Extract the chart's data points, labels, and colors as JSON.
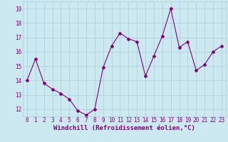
{
  "x": [
    0,
    1,
    2,
    3,
    4,
    5,
    6,
    7,
    8,
    9,
    10,
    11,
    12,
    13,
    14,
    15,
    16,
    17,
    18,
    19,
    20,
    21,
    22,
    23
  ],
  "y": [
    14.0,
    15.5,
    13.8,
    13.4,
    13.1,
    12.7,
    11.9,
    11.6,
    12.0,
    14.9,
    16.4,
    17.3,
    16.9,
    16.7,
    14.3,
    15.7,
    17.1,
    19.0,
    16.3,
    16.7,
    14.7,
    15.1,
    16.0,
    16.4
  ],
  "line_color": "#800080",
  "marker": "D",
  "marker_size": 2,
  "bg_color": "#cce8f0",
  "grid_color": "#aaccd8",
  "xlabel": "Windchill (Refroidissement éolien,°C)",
  "xlabel_color": "#800080",
  "xlim": [
    -0.5,
    23.5
  ],
  "ylim": [
    11.5,
    19.5
  ],
  "yticks": [
    12,
    13,
    14,
    15,
    16,
    17,
    18,
    19
  ],
  "xticks": [
    0,
    1,
    2,
    3,
    4,
    5,
    6,
    7,
    8,
    9,
    10,
    11,
    12,
    13,
    14,
    15,
    16,
    17,
    18,
    19,
    20,
    21,
    22,
    23
  ],
  "tick_color": "#800080",
  "tick_fontsize": 5.5,
  "xlabel_fontsize": 6.5
}
